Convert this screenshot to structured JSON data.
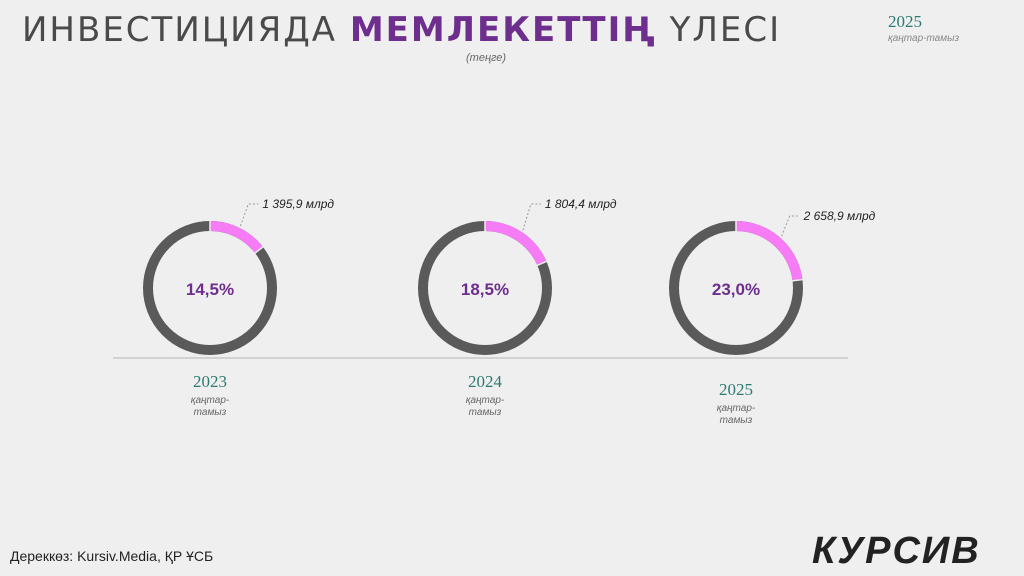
{
  "header": {
    "title_part1": "ИНВЕСТИЦИЯДА ",
    "title_accent": "МЕМЛЕКЕТТІҢ",
    "title_part2": " ҮЛЕСІ",
    "unit": "(теңге)",
    "period_year": "2025",
    "period_months": "қаңтар-тамыз"
  },
  "colors": {
    "ring": "#5a5a5a",
    "share": "#f57cf5",
    "percent_text": "#6e2e8e",
    "year_text": "#2c7a72",
    "baseline": "#b5b5b5"
  },
  "chart_data": {
    "type": "donut",
    "items": [
      {
        "year": "2023",
        "months": [
          "қаңтар-",
          "тамыз"
        ],
        "share_percent": 14.5,
        "share_label": "14,5%",
        "amount_label": "1 395,9 млрд"
      },
      {
        "year": "2024",
        "months": [
          "қаңтар-",
          "тамыз"
        ],
        "share_percent": 18.5,
        "share_label": "18,5%",
        "amount_label": "1 804,4 млрд"
      },
      {
        "year": "2025",
        "months": [
          "қаңтар-",
          "тамыз"
        ],
        "share_percent": 23.0,
        "share_label": "23,0%",
        "amount_label": "2 658,9 млрд"
      }
    ]
  },
  "footer": {
    "source": "Дереккөз: Kursiv.Media, ҚР ҰСБ",
    "logo": "КУРСИВ"
  }
}
